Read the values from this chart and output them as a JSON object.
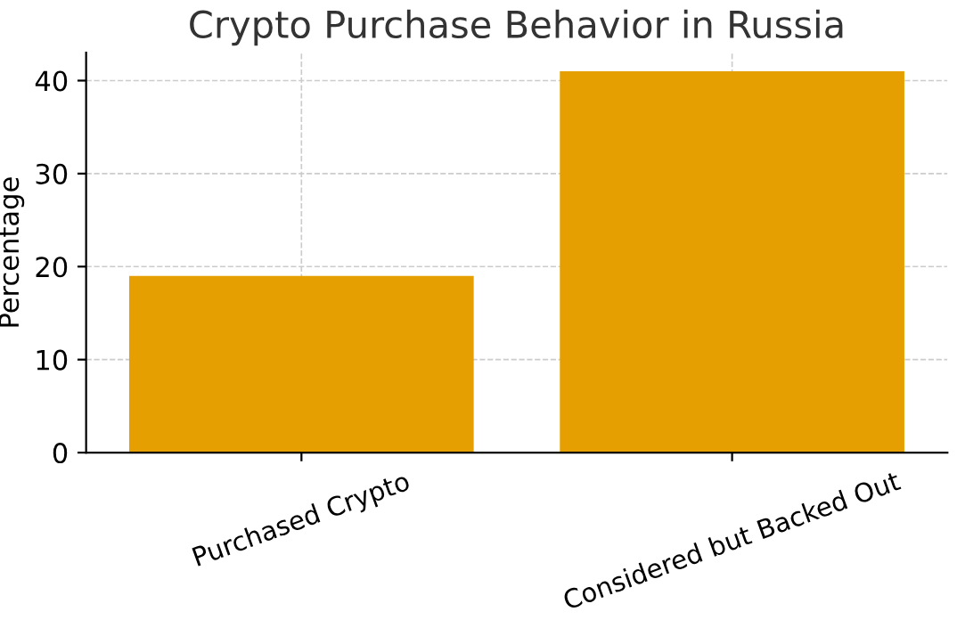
{
  "chart_data": {
    "type": "bar",
    "title": "Crypto Purchase Behavior in Russia",
    "ylabel": "Percentage",
    "categories": [
      "Purchased Crypto",
      "Considered but Backed Out"
    ],
    "values": [
      19,
      41
    ],
    "color": "#e59f00",
    "ylim": [
      0,
      43
    ],
    "yticks": [
      0,
      10,
      20,
      30,
      40
    ],
    "grid": true
  }
}
